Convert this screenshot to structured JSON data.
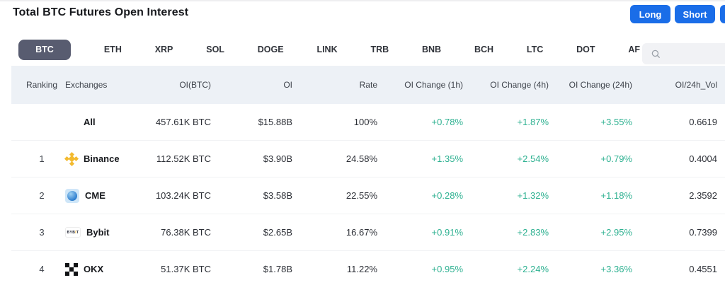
{
  "header": {
    "title": "Total BTC Futures Open Interest",
    "long_label": "Long",
    "short_label": "Short"
  },
  "tabs": [
    "BTC",
    "ETH",
    "XRP",
    "SOL",
    "DOGE",
    "LINK",
    "TRB",
    "BNB",
    "BCH",
    "LTC",
    "DOT",
    "AF"
  ],
  "active_tab": "BTC",
  "search": {
    "value": "",
    "icon": "search-icon"
  },
  "colors": {
    "accent_blue": "#1a6de8",
    "positive_green": "#2eb191",
    "active_tab_bg": "#585c70",
    "table_header_bg": "#edf1f6"
  },
  "table": {
    "columns": [
      "Ranking",
      "Exchanges",
      "OI(BTC)",
      "OI",
      "Rate",
      "OI Change (1h)",
      "OI Change (4h)",
      "OI Change (24h)",
      "OI/24h_Vol"
    ],
    "rows": [
      {
        "rank": "",
        "exchange": "All",
        "logo": "none",
        "oi_btc": "457.61K BTC",
        "oi": "$15.88B",
        "rate": "100%",
        "change_1h": "+0.78%",
        "change_4h": "+1.87%",
        "change_24h": "+3.55%",
        "oi_24h_vol": "0.6619"
      },
      {
        "rank": "1",
        "exchange": "Binance",
        "logo": "binance",
        "oi_btc": "112.52K BTC",
        "oi": "$3.90B",
        "rate": "24.58%",
        "change_1h": "+1.35%",
        "change_4h": "+2.54%",
        "change_24h": "+0.79%",
        "oi_24h_vol": "0.4004"
      },
      {
        "rank": "2",
        "exchange": "CME",
        "logo": "cme",
        "oi_btc": "103.24K BTC",
        "oi": "$3.58B",
        "rate": "22.55%",
        "change_1h": "+0.28%",
        "change_4h": "+1.32%",
        "change_24h": "+1.18%",
        "oi_24h_vol": "2.3592"
      },
      {
        "rank": "3",
        "exchange": "Bybit",
        "logo": "bybit",
        "oi_btc": "76.38K BTC",
        "oi": "$2.65B",
        "rate": "16.67%",
        "change_1h": "+0.91%",
        "change_4h": "+2.83%",
        "change_24h": "+2.95%",
        "oi_24h_vol": "0.7399"
      },
      {
        "rank": "4",
        "exchange": "OKX",
        "logo": "okx",
        "oi_btc": "51.37K BTC",
        "oi": "$1.78B",
        "rate": "11.22%",
        "change_1h": "+0.95%",
        "change_4h": "+2.24%",
        "change_24h": "+3.36%",
        "oi_24h_vol": "0.4551"
      }
    ]
  }
}
